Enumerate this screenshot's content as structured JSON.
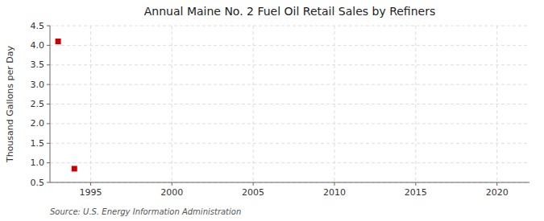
{
  "chart_data": {
    "type": "scatter",
    "title": "Annual Maine No. 2 Fuel Oil Retail Sales by Refiners",
    "ylabel": "Thousand Gallons per Day",
    "source": "Source: U.S. Energy Information Administration",
    "x": [
      1993,
      1994
    ],
    "values": [
      4.1,
      0.85
    ],
    "color": "#cc0000",
    "marker": "square",
    "xlim": [
      1992.5,
      2022
    ],
    "ylim": [
      0.5,
      4.5
    ],
    "xticks": [
      1995,
      2000,
      2005,
      2010,
      2015,
      2020
    ],
    "yticks": [
      0.5,
      {
        "value": 1.0,
        "label": "1.0"
      },
      1.5,
      {
        "value": 2.0,
        "label": "2.0"
      },
      2.5,
      {
        "value": 3.0,
        "label": "3.0"
      },
      3.5,
      {
        "value": 4.0,
        "label": "4.0"
      },
      4.5
    ],
    "grid": true
  }
}
